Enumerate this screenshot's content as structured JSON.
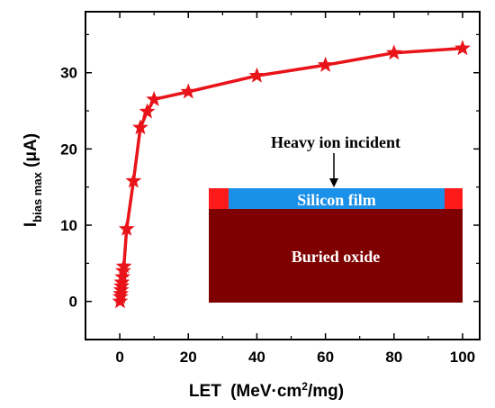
{
  "chart_data": {
    "type": "line",
    "xlabel": "LET",
    "xlabel_unit_prefix": "(MeV·cm",
    "xlabel_unit_sup": "2",
    "xlabel_unit_suffix": "/mg)",
    "ylabel_main": "I",
    "ylabel_sub": "bias max",
    "ylabel_unit": " (μA)",
    "xlim": [
      -10,
      105
    ],
    "ylim": [
      -5,
      38
    ],
    "xticks": [
      0,
      20,
      40,
      60,
      80,
      100
    ],
    "xtick_labels": [
      "0",
      "20",
      "40",
      "60",
      "80",
      "100"
    ],
    "yticks": [
      0,
      10,
      20,
      30
    ],
    "ytick_labels": [
      "0",
      "10",
      "20",
      "30"
    ],
    "x_minor_step": 10,
    "y_minor_step": 5,
    "grid": false,
    "marker": "star",
    "color": "#e8141a",
    "series": [
      {
        "x": [
          0.1,
          0.2,
          0.3,
          0.4,
          0.5,
          0.6,
          0.8,
          1,
          1.2,
          2,
          4,
          6,
          8,
          10,
          20,
          40,
          60,
          80,
          100
        ],
        "y": [
          0.0,
          0.6,
          1.0,
          1.5,
          2.0,
          2.5,
          3.2,
          4.0,
          4.6,
          9.5,
          15.8,
          22.8,
          24.9,
          26.5,
          27.5,
          29.6,
          31.0,
          32.6,
          33.2
        ]
      }
    ]
  },
  "inset": {
    "heavy_ion_label": "Heavy ion incident",
    "silicon_label": "Silicon film",
    "oxide_label": "Buried oxide",
    "colors": {
      "oxide": "#7f0000",
      "silicon": "#1a90e8",
      "contact": "#ff1a1a",
      "oxide_text": "#ffffff",
      "silicon_text": "#ffffff"
    }
  }
}
